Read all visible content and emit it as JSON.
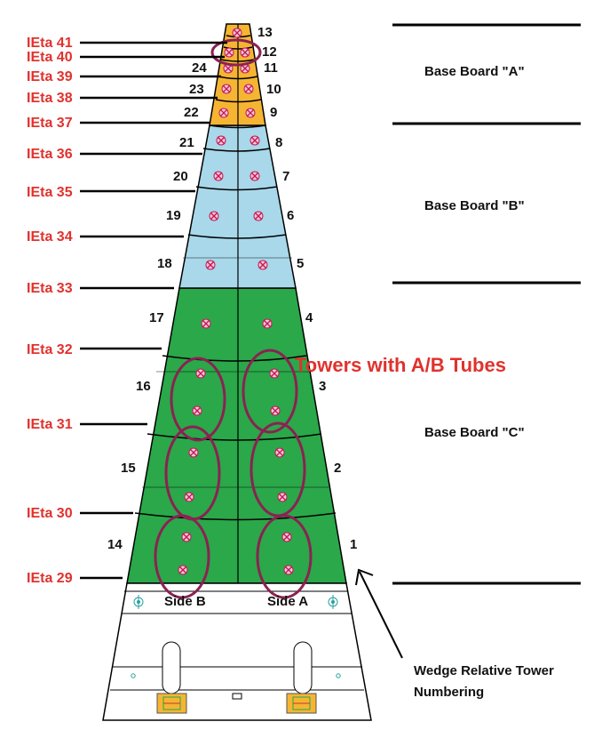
{
  "ieta_labels": [
    "IEta 41",
    "IEta 40",
    "IEta 39",
    "IEta 38",
    "IEta 37",
    "IEta 36",
    "IEta 35",
    "IEta 34",
    "IEta 33",
    "IEta 32",
    "IEta 31",
    "IEta 30",
    "IEta 29"
  ],
  "towers_side_a": [
    "1",
    "2",
    "3",
    "4",
    "5",
    "6",
    "7",
    "8",
    "9",
    "10",
    "11",
    "12",
    "13"
  ],
  "towers_side_b": [
    "14",
    "15",
    "16",
    "17",
    "18",
    "19",
    "20",
    "21",
    "22",
    "23",
    "24"
  ],
  "base_boards": {
    "a": "Base Board \"A\"",
    "b": "Base Board \"B\"",
    "c": "Base Board \"C\""
  },
  "side_labels": {
    "b": "Side B",
    "a": "Side A"
  },
  "callout": "Towers with A/B Tubes",
  "caption": {
    "line1": "Wedge Relative Tower",
    "line2": "Numbering"
  },
  "colors": {
    "board_a": "#f5b533",
    "board_b": "#a8d8ea",
    "board_c": "#2aa84a",
    "ieta_text": "#e0322d",
    "ellipse": "#8b2252"
  }
}
